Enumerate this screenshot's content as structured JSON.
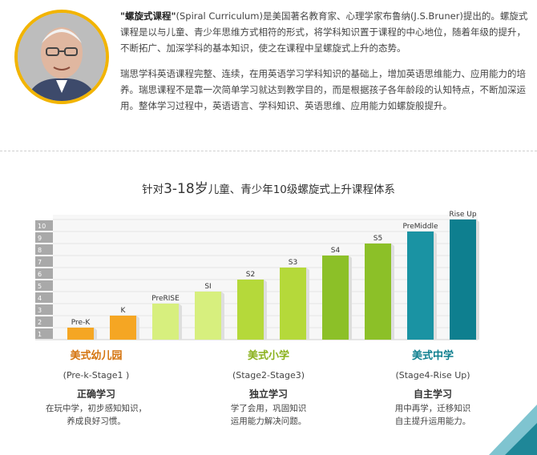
{
  "intro": {
    "p1_bold": "\"螺旋式课程\"",
    "p1_rest": "(Spiral Curriculum)是美国著名教育家、心理学家布鲁纳(J.S.Bruner)提出的。螺旋式课程是以与儿童、青少年思维方式相符的形式，将学科知识置于课程的中心地位，随着年级的提升，不断拓广、加深学科的基本知识，使之在课程中呈螺旋式上升的态势。",
    "p2": "瑞思学科英语课程完整、连续，在用英语学习学科知识的基础上，增加英语思维能力、应用能力的培养。瑞思课程不是靠一次简单学习就达到教学目的，而是根据孩子各年龄段的认知特点，不断加深运用。整体学习过程中，英语语言、学科知识、英语思维、应用能力如螺旋般提升。"
  },
  "title": {
    "prefix": "针对",
    "age": "3-18岁",
    "suffix": "儿童、青少年10级螺旋式上升课程体系"
  },
  "chart_data": {
    "type": "bar",
    "title": "针对3-18岁儿童、青少年10级螺旋式上升课程体系",
    "categories": [
      "Pre-K",
      "K",
      "PreRISE",
      "SI",
      "S2",
      "S3",
      "S4",
      "S5",
      "PreMiddle",
      "Rise Up"
    ],
    "values": [
      1,
      2,
      3,
      4,
      5,
      6,
      7,
      8,
      9,
      10
    ],
    "ylim": [
      0,
      10
    ],
    "y_ticks": [
      "1",
      "2",
      "3",
      "4",
      "5",
      "6",
      "7",
      "8",
      "9",
      "10"
    ],
    "colors": [
      "#f5a623",
      "#f5a623",
      "#d7ef7e",
      "#d7ef7e",
      "#b5d93a",
      "#b5d93a",
      "#8cc028",
      "#8cc028",
      "#1a93a3",
      "#0e7f8f"
    ],
    "grid": true
  },
  "groups": [
    {
      "name": "美式幼儿园",
      "color": "#d4730d",
      "stage": "(Pre-k-Stage1 )",
      "goal": "正确学习",
      "desc": [
        "在玩中学，初步感知知识，",
        "养成良好习惯。"
      ]
    },
    {
      "name": "美式小学",
      "color": "#8ab11c",
      "stage": "(Stage2-Stage3)",
      "goal": "独立学习",
      "desc": [
        "学了会用，巩固知识",
        "运用能力解决问题。"
      ]
    },
    {
      "name": "美式中学",
      "color": "#0e7f8f",
      "stage": "(Stage4-Rise Up)",
      "goal": "自主学习",
      "desc": [
        "用中再学，迁移知识",
        "自主提升运用能力。"
      ]
    }
  ]
}
